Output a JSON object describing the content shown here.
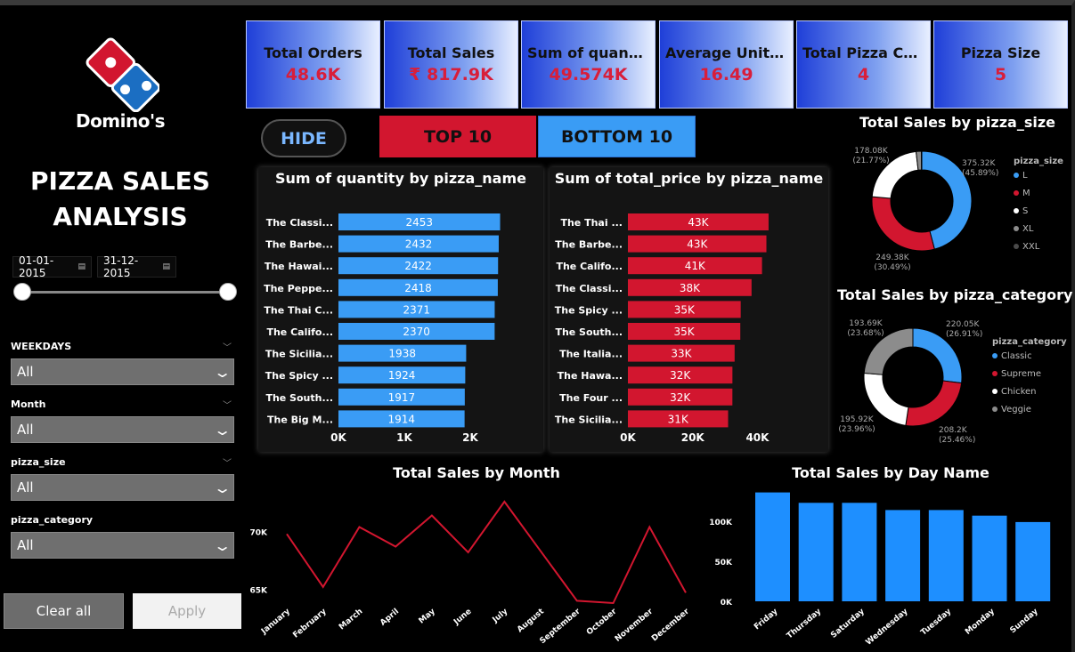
{
  "brand": {
    "name": "Domino's"
  },
  "sidebar": {
    "title_line1": "PIZZA SALES",
    "title_line2": "ANALYSIS",
    "date_start": "01-01-2015",
    "date_end": "31-12-2015",
    "filters": [
      {
        "label": "WEEKDAYS",
        "value": "All"
      },
      {
        "label": "Month",
        "value": "All"
      },
      {
        "label": "pizza_size",
        "value": "All"
      },
      {
        "label": "pizza_category",
        "value": "All"
      }
    ],
    "clear_label": "Clear all",
    "apply_label": "Apply"
  },
  "kpis": [
    {
      "label": "Total Orders",
      "value": "48.6K"
    },
    {
      "label": "Total Sales",
      "value": "₹ 817.9K"
    },
    {
      "label": "Sum of quantity",
      "value": "49.574K"
    },
    {
      "label": "Average Unit Price",
      "value": "16.49"
    },
    {
      "label": "Total Pizza Category",
      "value": "4"
    },
    {
      "label": "Pizza Size",
      "value": "5"
    }
  ],
  "buttons": {
    "hide": "HIDE",
    "top10": "TOP 10",
    "bottom10": "BOTTOM 10"
  },
  "colors": {
    "blue": "#3a9cf5",
    "red": "#d2162f",
    "white": "#ffffff",
    "grey": "#8c8c8c",
    "dark": "#4a4a4a",
    "kpi_value": "#d81e3a"
  },
  "chart_data": [
    {
      "type": "bar",
      "title": "Sum of quantity by pizza_name",
      "orientation": "horizontal",
      "categories": [
        "The Classi...",
        "The Barbe...",
        "The Hawai...",
        "The Peppe...",
        "The Thai C...",
        "The Califo...",
        "The Sicilia...",
        "The Spicy ...",
        "The South...",
        "The Big M..."
      ],
      "values": [
        2453,
        2432,
        2422,
        2418,
        2371,
        2370,
        1938,
        1924,
        1917,
        1914
      ],
      "data_labels": [
        "2453",
        "2432",
        "2422",
        "2418",
        "2371",
        "2370",
        "1938",
        "1924",
        "1917",
        "1914"
      ],
      "x_ticks": [
        "0K",
        "1K",
        "2K"
      ],
      "xlim": [
        0,
        2500
      ],
      "color": "#3a9cf5"
    },
    {
      "type": "bar",
      "title": "Sum of total_price by pizza_name",
      "orientation": "horizontal",
      "categories": [
        "The Thai ...",
        "The Barbe...",
        "The Califo...",
        "The Classi...",
        "The Spicy ...",
        "The South...",
        "The Italia...",
        "The Hawa...",
        "The Four ...",
        "The Sicilia..."
      ],
      "values": [
        43434,
        42768,
        41410,
        38180,
        34832,
        34705,
        32950,
        32273,
        32266,
        30940
      ],
      "data_labels": [
        "43K",
        "43K",
        "41K",
        "38K",
        "35K",
        "35K",
        "33K",
        "32K",
        "32K",
        "31K"
      ],
      "x_ticks": [
        "0K",
        "20K",
        "40K"
      ],
      "xlim": [
        0,
        44000
      ],
      "color": "#d2162f"
    },
    {
      "type": "pie",
      "title": "Total Sales by pizza_size",
      "legend_title": "pizza_size",
      "legend": [
        "L",
        "M",
        "S",
        "XL",
        "XXL"
      ],
      "values": [
        375.32,
        249.38,
        178.08,
        14.08,
        1.01
      ],
      "labels": [
        "375.32K\n(45.89%)",
        "249.38K\n(30.49%)",
        "178.08K\n(21.77%)",
        "",
        ""
      ],
      "colors": [
        "#3a9cf5",
        "#d2162f",
        "#ffffff",
        "#8c8c8c",
        "#4a4a4a"
      ]
    },
    {
      "type": "pie",
      "title": "Total Sales by pizza_category",
      "legend_title": "pizza_category",
      "legend": [
        "Classic",
        "Supreme",
        "Chicken",
        "Veggie"
      ],
      "values": [
        220.05,
        208.2,
        195.92,
        193.69
      ],
      "labels": [
        "220.05K\n(26.91%)",
        "208.2K\n(25.46%)",
        "195.92K\n(23.96%)",
        "193.69K\n(23.68%)"
      ],
      "colors": [
        "#3a9cf5",
        "#d2162f",
        "#ffffff",
        "#8c8c8c"
      ]
    },
    {
      "type": "line",
      "title": "Total Sales by Month",
      "categories": [
        "January",
        "February",
        "March",
        "April",
        "May",
        "June",
        "July",
        "August",
        "September",
        "October",
        "November",
        "December"
      ],
      "values": [
        69800,
        65200,
        70400,
        68700,
        71400,
        68200,
        72600,
        68300,
        64000,
        63800,
        70400,
        64700
      ],
      "y_ticks": [
        "65K",
        "70K"
      ],
      "ylim": [
        63800,
        72600
      ],
      "color": "#d2162f"
    },
    {
      "type": "bar",
      "title": "Total Sales by Day Name",
      "categories": [
        "Friday",
        "Thursday",
        "Saturday",
        "Wednesday",
        "Tuesday",
        "Monday",
        "Sunday"
      ],
      "values": [
        136000,
        123000,
        123000,
        114000,
        114000,
        107000,
        99000
      ],
      "y_ticks": [
        "0K",
        "50K",
        "100K"
      ],
      "ylim": [
        0,
        140000
      ],
      "color": "#1e8fff"
    }
  ]
}
